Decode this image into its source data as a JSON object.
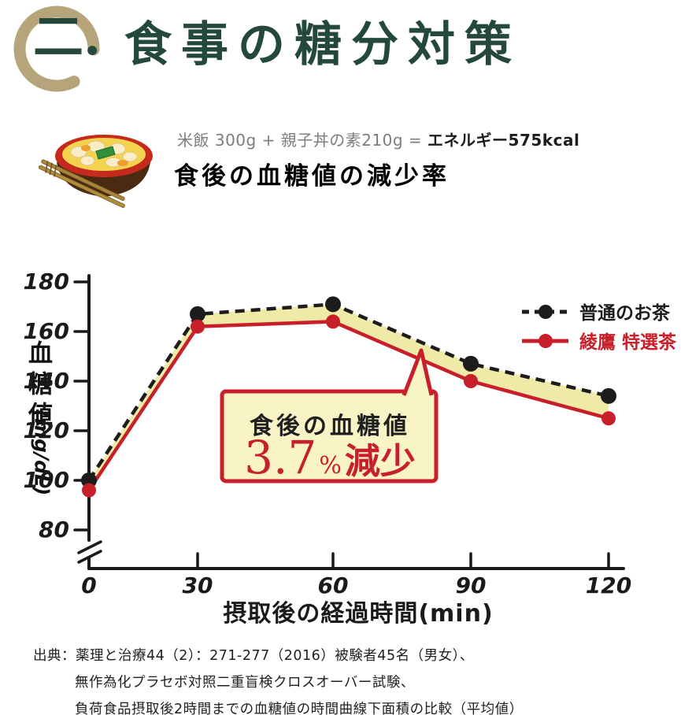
{
  "header": {
    "logo_char": "二.",
    "title": "食事の糖分対策",
    "title_color": "#24483e",
    "logo_ring_color": "#b6a47a"
  },
  "meal": {
    "icon": "oyakodon-rice-bowl-icon",
    "formula_gray": "米飯 300g + 親子丼の素210g = ",
    "formula_bold": "エネルギー575kcal",
    "subtitle": "食後の血糖値の減少率"
  },
  "chart_data": {
    "type": "line",
    "x": [
      0,
      30,
      60,
      90,
      120
    ],
    "xlabel": "摂取後の経過時間(min)",
    "ylabel": "血糖値(mg/dL)",
    "ylabel_main": "血糖値",
    "ylabel_unit": "(mg/dL)",
    "y_ticks": [
      180,
      160,
      140,
      120,
      100,
      80
    ],
    "ylim": [
      80,
      180
    ],
    "axis_break_below": 80,
    "grid": false,
    "legend_position": "top-right",
    "band_fill": "#efeaa8",
    "series": [
      {
        "name": "普通のお茶",
        "color": "#1c1c1c",
        "style": "dashed",
        "values": [
          100,
          167,
          171,
          147,
          134
        ]
      },
      {
        "name": "綾鷹 特選茶",
        "color": "#c8202a",
        "style": "solid",
        "values": [
          96,
          162,
          164,
          140,
          125
        ]
      }
    ]
  },
  "annotation": {
    "line1": "食後の血糖値",
    "value": "3.7",
    "unit": "%",
    "suffix": "減少",
    "bg": "#f8f4c6",
    "border": "#c8202a"
  },
  "source": {
    "lines": [
      "出典：薬理と治療44（2）：271-277（2016）被験者45名（男女）、",
      "無作為化プラセボ対照二重盲検クロスオーバー試験、",
      "負荷食品摂取後2時間までの血糖値の時間曲線下面積の比較（平均値）"
    ]
  }
}
